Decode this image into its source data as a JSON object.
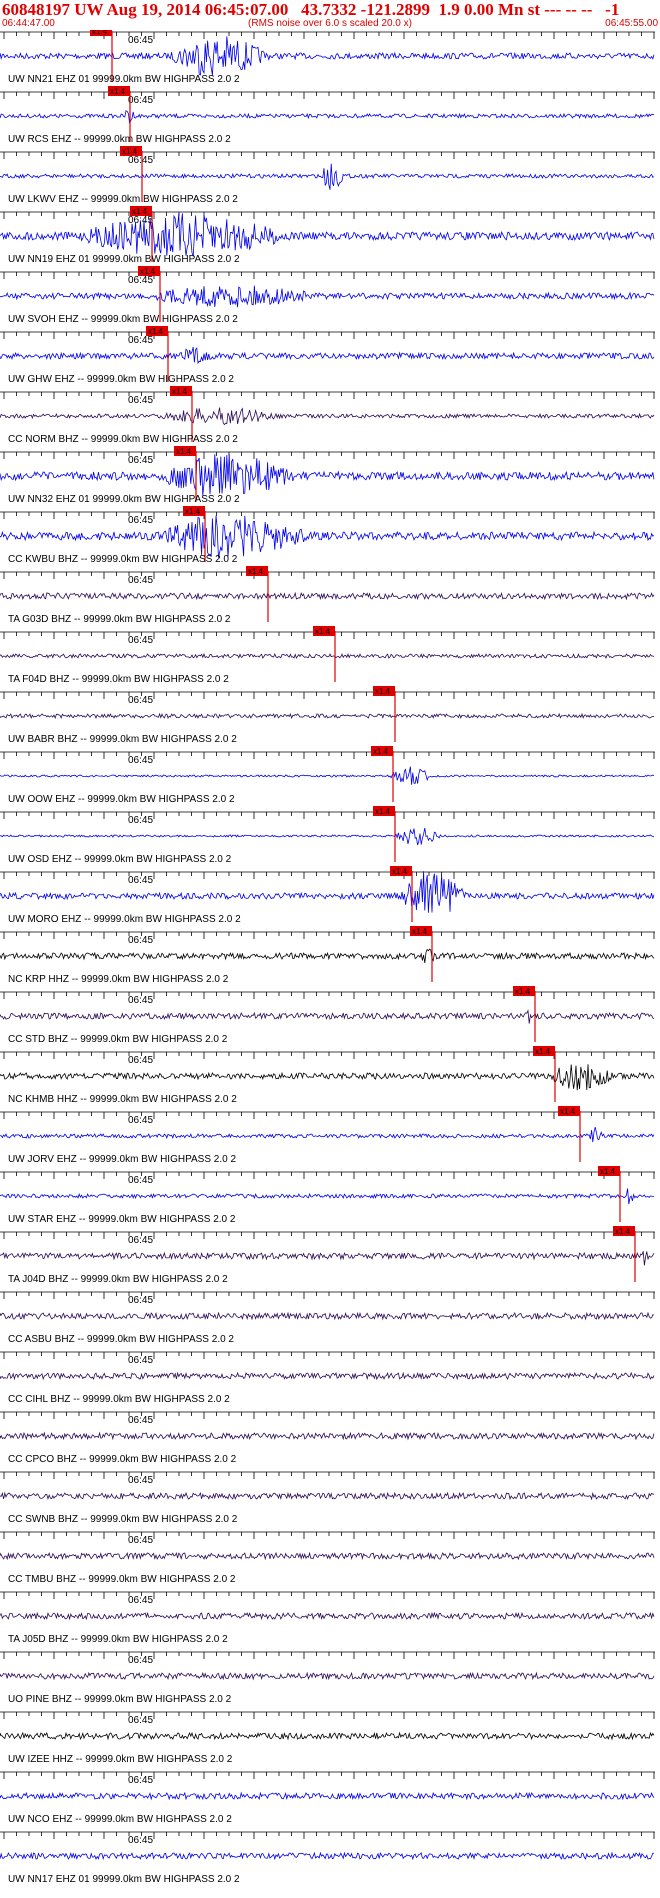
{
  "header": {
    "title": "60848197 UW Aug 19, 2014 06:45:07.00   43.7332 -121.2899  1.9 0.00 Mn st --- -- --   -1",
    "start_time": "06:44:47.00",
    "noise_note": "(RMS noise over 6.0 s scaled 20.0 x)",
    "end_time": "06:45:55.00"
  },
  "minute_label": "06:45",
  "pick_label": "x1.4",
  "colors": {
    "header": "#e00000",
    "pick": "#e00000",
    "blue": "#0000ee",
    "dark": "#2a0a55",
    "black": "#000000"
  },
  "traces": [
    {
      "label": "UW NN21 EHZ 01 99999.0km BW  HIGHPASS  2.0  2",
      "color": "blue"
    },
    {
      "label": "UW RCS EHZ -- 99999.0km BW  HIGHPASS  2.0  2",
      "color": "blue"
    },
    {
      "label": "UW LKWV EHZ -- 99999.0km BW  HIGHPASS  2.0  2",
      "color": "blue"
    },
    {
      "label": "UW NN19 EHZ 01 99999.0km BW  HIGHPASS  2.0  2",
      "color": "blue"
    },
    {
      "label": "UW SVOH EHZ -- 99999.0km BW  HIGHPASS  2.0  2",
      "color": "blue"
    },
    {
      "label": "UW GHW EHZ -- 99999.0km BW  HIGHPASS  2.0  2",
      "color": "blue"
    },
    {
      "label": "CC NORM BHZ -- 99999.0km BW  HIGHPASS  2.0  2",
      "color": "dark"
    },
    {
      "label": "UW NN32 EHZ 01 99999.0km BW  HIGHPASS  2.0  2",
      "color": "blue"
    },
    {
      "label": "CC KWBU BHZ -- 99999.0km BW  HIGHPASS  2.0  2",
      "color": "blue"
    },
    {
      "label": "TA G03D BHZ -- 99999.0km BW  HIGHPASS  2.0  2",
      "color": "dark"
    },
    {
      "label": "TA F04D BHZ -- 99999.0km BW  HIGHPASS  2.0  2",
      "color": "dark"
    },
    {
      "label": "UW BABR BHZ -- 99999.0km BW  HIGHPASS  2.0  2",
      "color": "dark"
    },
    {
      "label": "UW OOW EHZ -- 99999.0km BW  HIGHPASS  2.0  2",
      "color": "blue"
    },
    {
      "label": "UW OSD EHZ -- 99999.0km BW  HIGHPASS  2.0  2",
      "color": "blue"
    },
    {
      "label": "UW MORO EHZ -- 99999.0km BW  HIGHPASS  2.0  2",
      "color": "blue"
    },
    {
      "label": "NC KRP HHZ -- 99999.0km BW  HIGHPASS  2.0  2",
      "color": "black"
    },
    {
      "label": "CC STD BHZ -- 99999.0km BW  HIGHPASS  2.0  2",
      "color": "dark"
    },
    {
      "label": "NC KHMB HHZ -- 99999.0km BW  HIGHPASS  2.0  2",
      "color": "black"
    },
    {
      "label": "UW JORV EHZ -- 99999.0km BW  HIGHPASS  2.0  2",
      "color": "blue"
    },
    {
      "label": "UW STAR EHZ -- 99999.0km BW  HIGHPASS  2.0  2",
      "color": "blue"
    },
    {
      "label": "TA J04D BHZ -- 99999.0km BW  HIGHPASS  2.0  2",
      "color": "dark"
    },
    {
      "label": "CC ASBU BHZ -- 99999.0km BW  HIGHPASS  2.0  2",
      "color": "dark"
    },
    {
      "label": "CC CIHL BHZ -- 99999.0km BW  HIGHPASS  2.0  2",
      "color": "dark"
    },
    {
      "label": "CC CPCO BHZ -- 99999.0km BW  HIGHPASS  2.0  2",
      "color": "dark"
    },
    {
      "label": "CC SWNB BHZ -- 99999.0km BW  HIGHPASS  2.0  2",
      "color": "dark"
    },
    {
      "label": "CC TMBU BHZ -- 99999.0km BW  HIGHPASS  2.0  2",
      "color": "dark"
    },
    {
      "label": "TA J05D BHZ -- 99999.0km BW  HIGHPASS  2.0  2",
      "color": "dark"
    },
    {
      "label": "UO PINE BHZ -- 99999.0km BW  HIGHPASS  2.0  2",
      "color": "dark"
    },
    {
      "label": "UW IZEE HHZ -- 99999.0km BW  HIGHPASS  2.0  2",
      "color": "black"
    },
    {
      "label": "UW NCO EHZ -- 99999.0km BW  HIGHPASS  2.0  2",
      "color": "blue"
    },
    {
      "label": "UW NN17 EHZ 01 99999.0km BW  HIGHPASS  2.0  2",
      "color": "blue"
    }
  ]
}
